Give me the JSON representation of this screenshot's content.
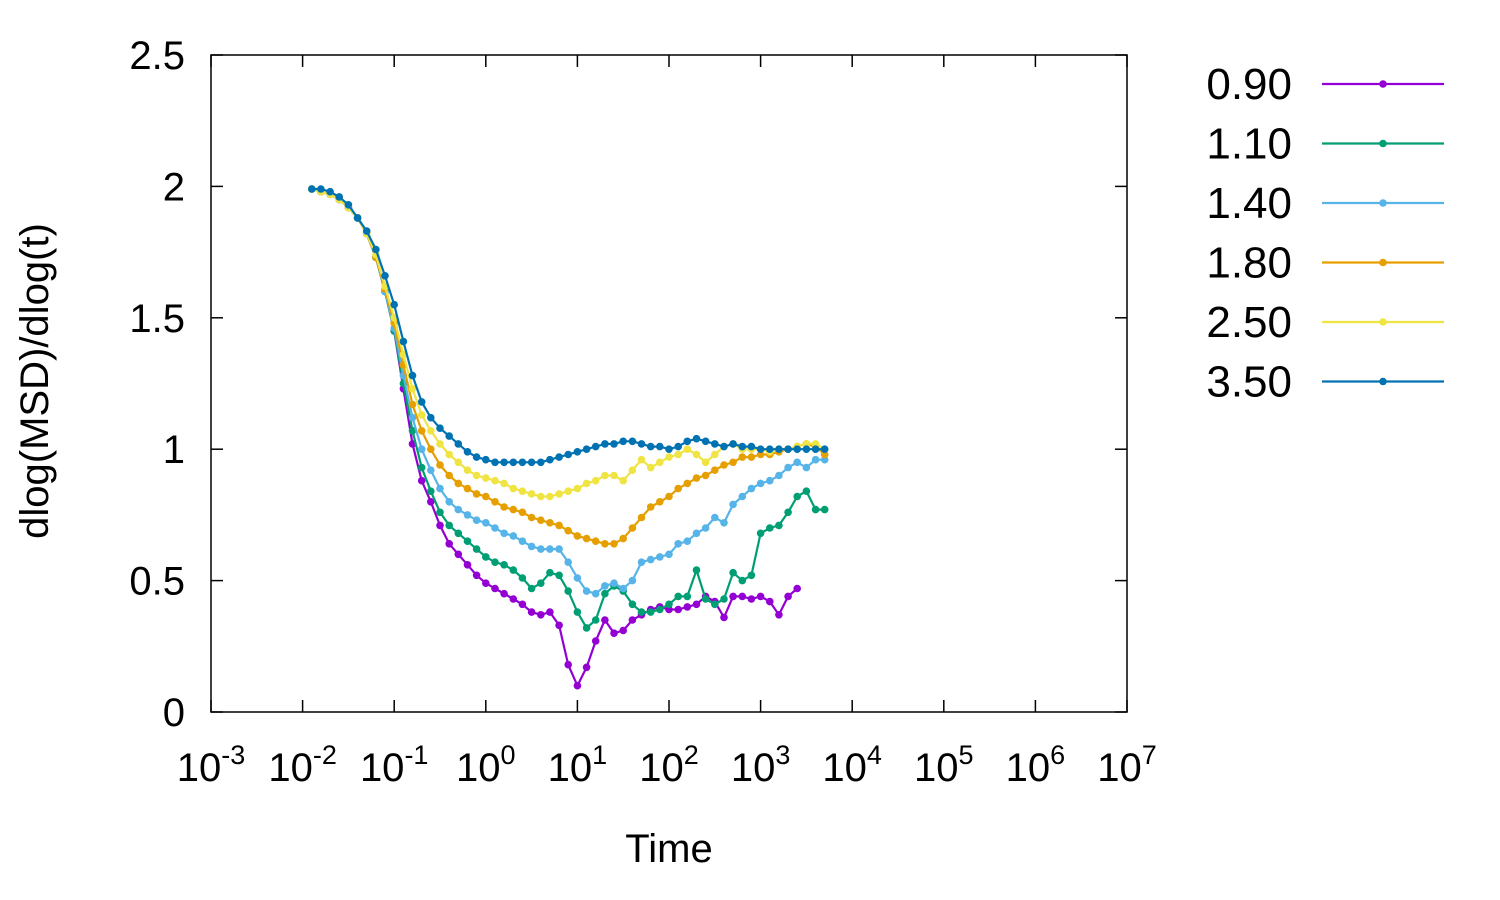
{
  "chart_data": {
    "type": "line",
    "title": "",
    "xlabel": "Time",
    "ylabel": "dlog(MSD)/dlog(t)",
    "xscale": "log",
    "xlim": [
      0.001,
      10000000
    ],
    "ylim": [
      0,
      2.5
    ],
    "x_ticks": [
      {
        "value": 0.001,
        "base": "10",
        "exp": "-3"
      },
      {
        "value": 0.01,
        "base": "10",
        "exp": "-2"
      },
      {
        "value": 0.1,
        "base": "10",
        "exp": "-1"
      },
      {
        "value": 1,
        "base": "10",
        "exp": "0"
      },
      {
        "value": 10,
        "base": "10",
        "exp": "1"
      },
      {
        "value": 100,
        "base": "10",
        "exp": "2"
      },
      {
        "value": 1000,
        "base": "10",
        "exp": "3"
      },
      {
        "value": 10000,
        "base": "10",
        "exp": "4"
      },
      {
        "value": 100000,
        "base": "10",
        "exp": "5"
      },
      {
        "value": 1000000,
        "base": "10",
        "exp": "6"
      },
      {
        "value": 10000000,
        "base": "10",
        "exp": "7"
      }
    ],
    "y_ticks": [
      {
        "value": 0,
        "label": "0"
      },
      {
        "value": 0.5,
        "label": "0.5"
      },
      {
        "value": 1,
        "label": "1"
      },
      {
        "value": 1.5,
        "label": "1.5"
      },
      {
        "value": 2,
        "label": "2"
      },
      {
        "value": 2.5,
        "label": "2.5"
      }
    ],
    "grid": false,
    "legend_position": "outside-right",
    "series": [
      {
        "name": "0.90",
        "color": "#9400d3",
        "log10_x": [
          -1.9,
          -1.8,
          -1.7,
          -1.6,
          -1.5,
          -1.4,
          -1.3,
          -1.2,
          -1.1,
          -1.0,
          -0.9,
          -0.8,
          -0.7,
          -0.6,
          -0.5,
          -0.4,
          -0.3,
          -0.2,
          -0.1,
          0.0,
          0.1,
          0.2,
          0.3,
          0.4,
          0.5,
          0.6,
          0.7,
          0.8,
          0.9,
          1.0,
          1.1,
          1.2,
          1.3,
          1.4,
          1.5,
          1.6,
          1.7,
          1.8,
          1.9,
          2.0,
          2.1,
          2.2,
          2.3,
          2.4,
          2.5,
          2.6,
          2.7,
          2.8,
          2.9,
          3.0,
          3.1,
          3.2,
          3.3,
          3.4
        ],
        "values": [
          1.99,
          1.98,
          1.97,
          1.95,
          1.92,
          1.88,
          1.82,
          1.73,
          1.6,
          1.45,
          1.23,
          1.02,
          0.88,
          0.8,
          0.71,
          0.64,
          0.6,
          0.56,
          0.52,
          0.49,
          0.47,
          0.45,
          0.43,
          0.41,
          0.38,
          0.37,
          0.38,
          0.33,
          0.18,
          0.1,
          0.17,
          0.27,
          0.35,
          0.3,
          0.31,
          0.35,
          0.37,
          0.39,
          0.4,
          0.39,
          0.39,
          0.4,
          0.41,
          0.44,
          0.42,
          0.36,
          0.44,
          0.44,
          0.43,
          0.44,
          0.42,
          0.37,
          0.44,
          0.47
        ]
      },
      {
        "name": "1.10",
        "color": "#009e73",
        "log10_x": [
          -1.9,
          -1.8,
          -1.7,
          -1.6,
          -1.5,
          -1.4,
          -1.3,
          -1.2,
          -1.1,
          -1.0,
          -0.9,
          -0.8,
          -0.7,
          -0.6,
          -0.5,
          -0.4,
          -0.3,
          -0.2,
          -0.1,
          0.0,
          0.1,
          0.2,
          0.3,
          0.4,
          0.5,
          0.6,
          0.7,
          0.8,
          0.9,
          1.0,
          1.1,
          1.2,
          1.3,
          1.4,
          1.5,
          1.6,
          1.7,
          1.8,
          1.9,
          2.0,
          2.1,
          2.2,
          2.3,
          2.4,
          2.5,
          2.6,
          2.7,
          2.8,
          2.9,
          3.0,
          3.1,
          3.2,
          3.3,
          3.4,
          3.5,
          3.6,
          3.7
        ],
        "values": [
          1.99,
          1.98,
          1.97,
          1.95,
          1.92,
          1.88,
          1.82,
          1.73,
          1.6,
          1.45,
          1.25,
          1.07,
          0.93,
          0.84,
          0.76,
          0.71,
          0.68,
          0.65,
          0.62,
          0.59,
          0.57,
          0.56,
          0.54,
          0.51,
          0.47,
          0.49,
          0.53,
          0.52,
          0.46,
          0.38,
          0.32,
          0.35,
          0.45,
          0.48,
          0.46,
          0.41,
          0.38,
          0.38,
          0.39,
          0.41,
          0.44,
          0.44,
          0.54,
          0.43,
          0.41,
          0.43,
          0.53,
          0.5,
          0.52,
          0.68,
          0.7,
          0.71,
          0.76,
          0.82,
          0.84,
          0.77,
          0.77
        ]
      },
      {
        "name": "1.40",
        "color": "#56b4e9",
        "log10_x": [
          -1.9,
          -1.8,
          -1.7,
          -1.6,
          -1.5,
          -1.4,
          -1.3,
          -1.2,
          -1.1,
          -1.0,
          -0.9,
          -0.8,
          -0.7,
          -0.6,
          -0.5,
          -0.4,
          -0.3,
          -0.2,
          -0.1,
          0.0,
          0.1,
          0.2,
          0.3,
          0.4,
          0.5,
          0.6,
          0.7,
          0.8,
          0.9,
          1.0,
          1.1,
          1.2,
          1.3,
          1.4,
          1.5,
          1.6,
          1.7,
          1.8,
          1.9,
          2.0,
          2.1,
          2.2,
          2.3,
          2.4,
          2.5,
          2.6,
          2.7,
          2.8,
          2.9,
          3.0,
          3.1,
          3.2,
          3.3,
          3.4,
          3.5,
          3.6,
          3.7
        ],
        "values": [
          1.99,
          1.98,
          1.97,
          1.95,
          1.92,
          1.88,
          1.82,
          1.73,
          1.6,
          1.46,
          1.28,
          1.12,
          1.0,
          0.92,
          0.85,
          0.8,
          0.77,
          0.75,
          0.73,
          0.72,
          0.7,
          0.68,
          0.67,
          0.65,
          0.63,
          0.62,
          0.62,
          0.62,
          0.57,
          0.51,
          0.46,
          0.45,
          0.48,
          0.49,
          0.47,
          0.5,
          0.57,
          0.58,
          0.59,
          0.6,
          0.64,
          0.65,
          0.68,
          0.7,
          0.74,
          0.72,
          0.79,
          0.82,
          0.85,
          0.87,
          0.88,
          0.9,
          0.93,
          0.95,
          0.93,
          0.96,
          0.96
        ]
      },
      {
        "name": "1.80",
        "color": "#e69f00",
        "log10_x": [
          -1.9,
          -1.8,
          -1.7,
          -1.6,
          -1.5,
          -1.4,
          -1.3,
          -1.2,
          -1.1,
          -1.0,
          -0.9,
          -0.8,
          -0.7,
          -0.6,
          -0.5,
          -0.4,
          -0.3,
          -0.2,
          -0.1,
          0.0,
          0.1,
          0.2,
          0.3,
          0.4,
          0.5,
          0.6,
          0.7,
          0.8,
          0.9,
          1.0,
          1.1,
          1.2,
          1.3,
          1.4,
          1.5,
          1.6,
          1.7,
          1.8,
          1.9,
          2.0,
          2.1,
          2.2,
          2.3,
          2.4,
          2.5,
          2.6,
          2.7,
          2.8,
          2.9,
          3.0,
          3.1,
          3.2,
          3.3,
          3.4,
          3.5,
          3.6,
          3.7
        ],
        "values": [
          1.99,
          1.98,
          1.97,
          1.95,
          1.92,
          1.88,
          1.82,
          1.73,
          1.61,
          1.48,
          1.32,
          1.17,
          1.07,
          1.0,
          0.94,
          0.9,
          0.87,
          0.85,
          0.83,
          0.82,
          0.8,
          0.78,
          0.77,
          0.76,
          0.74,
          0.73,
          0.72,
          0.71,
          0.69,
          0.67,
          0.66,
          0.65,
          0.64,
          0.64,
          0.66,
          0.7,
          0.74,
          0.78,
          0.8,
          0.82,
          0.85,
          0.87,
          0.89,
          0.9,
          0.92,
          0.94,
          0.95,
          0.97,
          0.97,
          0.98,
          0.98,
          0.99,
          1.0,
          1.01,
          1.02,
          1.01,
          0.98
        ]
      },
      {
        "name": "2.50",
        "color": "#f0e442",
        "log10_x": [
          -1.9,
          -1.8,
          -1.7,
          -1.6,
          -1.5,
          -1.4,
          -1.3,
          -1.2,
          -1.1,
          -1.0,
          -0.9,
          -0.8,
          -0.7,
          -0.6,
          -0.5,
          -0.4,
          -0.3,
          -0.2,
          -0.1,
          0.0,
          0.1,
          0.2,
          0.3,
          0.4,
          0.5,
          0.6,
          0.7,
          0.8,
          0.9,
          1.0,
          1.1,
          1.2,
          1.3,
          1.4,
          1.5,
          1.6,
          1.7,
          1.8,
          1.9,
          2.0,
          2.1,
          2.2,
          2.3,
          2.4,
          2.5,
          2.6,
          2.7,
          2.8,
          2.9,
          3.0,
          3.1,
          3.2,
          3.3,
          3.4,
          3.5,
          3.6,
          3.7
        ],
        "values": [
          1.99,
          1.98,
          1.97,
          1.95,
          1.92,
          1.88,
          1.82,
          1.74,
          1.62,
          1.5,
          1.36,
          1.23,
          1.13,
          1.07,
          1.02,
          0.98,
          0.95,
          0.92,
          0.9,
          0.89,
          0.88,
          0.87,
          0.85,
          0.84,
          0.83,
          0.82,
          0.82,
          0.83,
          0.84,
          0.85,
          0.87,
          0.88,
          0.9,
          0.9,
          0.88,
          0.92,
          0.96,
          0.93,
          0.95,
          0.97,
          0.98,
          1.0,
          0.98,
          0.95,
          0.98,
          1.01,
          1.02,
          1.0,
          1.0,
          1.0,
          0.99,
          1.0,
          1.0,
          1.01,
          1.02,
          1.02,
          1.0
        ]
      },
      {
        "name": "3.50",
        "color": "#0072b2",
        "log10_x": [
          -1.9,
          -1.8,
          -1.7,
          -1.6,
          -1.5,
          -1.4,
          -1.3,
          -1.2,
          -1.1,
          -1.0,
          -0.9,
          -0.8,
          -0.7,
          -0.6,
          -0.5,
          -0.4,
          -0.3,
          -0.2,
          -0.1,
          0.0,
          0.1,
          0.2,
          0.3,
          0.4,
          0.5,
          0.6,
          0.7,
          0.8,
          0.9,
          1.0,
          1.1,
          1.2,
          1.3,
          1.4,
          1.5,
          1.6,
          1.7,
          1.8,
          1.9,
          2.0,
          2.1,
          2.2,
          2.3,
          2.4,
          2.5,
          2.6,
          2.7,
          2.8,
          2.9,
          3.0,
          3.1,
          3.2,
          3.3,
          3.4,
          3.5,
          3.6,
          3.7
        ],
        "values": [
          1.99,
          1.99,
          1.98,
          1.96,
          1.93,
          1.88,
          1.83,
          1.76,
          1.66,
          1.55,
          1.41,
          1.28,
          1.18,
          1.12,
          1.08,
          1.05,
          1.02,
          0.99,
          0.97,
          0.96,
          0.95,
          0.95,
          0.95,
          0.95,
          0.95,
          0.95,
          0.96,
          0.97,
          0.98,
          0.99,
          1.0,
          1.01,
          1.02,
          1.02,
          1.03,
          1.03,
          1.02,
          1.01,
          1.01,
          1.0,
          1.01,
          1.03,
          1.04,
          1.03,
          1.02,
          1.01,
          1.02,
          1.01,
          1.01,
          1.0,
          1.0,
          1.0,
          1.0,
          1.0,
          1.0,
          1.0,
          1.0
        ]
      }
    ]
  }
}
